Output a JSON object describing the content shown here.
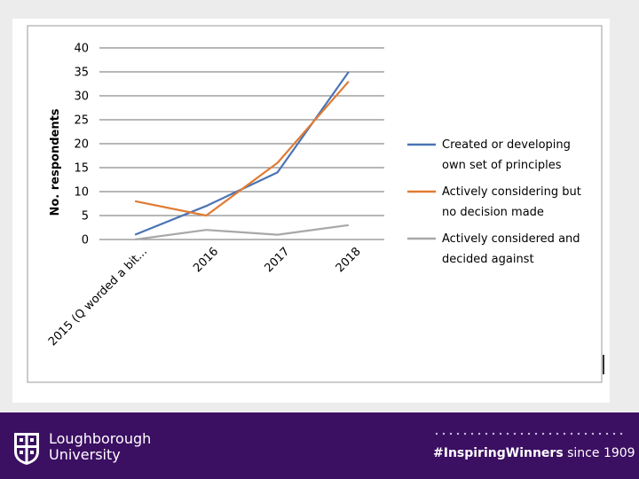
{
  "chart_data": {
    "type": "line",
    "title": "",
    "xlabel": "",
    "ylabel": "No. respondents",
    "ylim": [
      0,
      40
    ],
    "yticks": [
      0,
      5,
      10,
      15,
      20,
      25,
      30,
      35,
      40
    ],
    "categories": [
      "2015 (Q worded a bit...",
      "2016",
      "2017",
      "2018"
    ],
    "grid": true,
    "legend_position": "right",
    "series": [
      {
        "name": "Created or developing own set of principles",
        "color": "#4a74b5",
        "values": [
          1,
          7,
          14,
          35
        ]
      },
      {
        "name": "Actively considering but no decision made",
        "color": "#e07b33",
        "values": [
          8,
          5,
          16,
          33
        ]
      },
      {
        "name": "Actively considered and decided against",
        "color": "#a8a8a8",
        "values": [
          0,
          2,
          1,
          3
        ]
      }
    ]
  },
  "footer": {
    "university_line1": "Loughborough",
    "university_line2": "University",
    "tagline_bold": "#InspiringWinners",
    "tagline_rest": " since 1909",
    "background_color": "#3b0f62"
  }
}
